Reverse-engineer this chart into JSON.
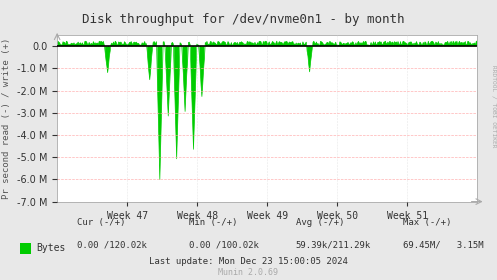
{
  "title": "Disk throughput for /dev/nvme0n1 - by month",
  "ylabel": "Pr second read (-) / write (+)",
  "xlabel_ticks": [
    "Week 47",
    "Week 48",
    "Week 49",
    "Week 50",
    "Week 51"
  ],
  "ylim": [
    -7000000,
    500000
  ],
  "bg_color": "#e8e8e8",
  "plot_bg_color": "#ffffff",
  "line_color": "#00cc00",
  "zero_line_color": "#000000",
  "title_color": "#333333",
  "label_color": "#555555",
  "legend_color": "#00cc00",
  "last_update": "Last update: Mon Dec 23 15:00:05 2024",
  "munin_version": "Munin 2.0.69",
  "rrdtool_label": "RRDTOOL / TOBI OETIKER",
  "n_points": 500,
  "spike_positions_read": [
    0.12,
    0.22,
    0.245,
    0.265,
    0.285,
    0.305,
    0.325,
    0.345,
    0.6
  ],
  "spike_depths_read": [
    -1300000,
    -1600000,
    -6100000,
    -3200000,
    -5200000,
    -3000000,
    -4800000,
    -2400000,
    -1200000
  ],
  "write_level": 150000,
  "noise_read_scale": 8000,
  "cur_neg": "0.00",
  "cur_pos": "120.02k",
  "min_neg": "0.00",
  "min_pos": "100.02k",
  "avg_neg": "59.39k",
  "avg_pos": "211.29k",
  "max_neg": "69.45M/",
  "max_pos": "3.15M"
}
